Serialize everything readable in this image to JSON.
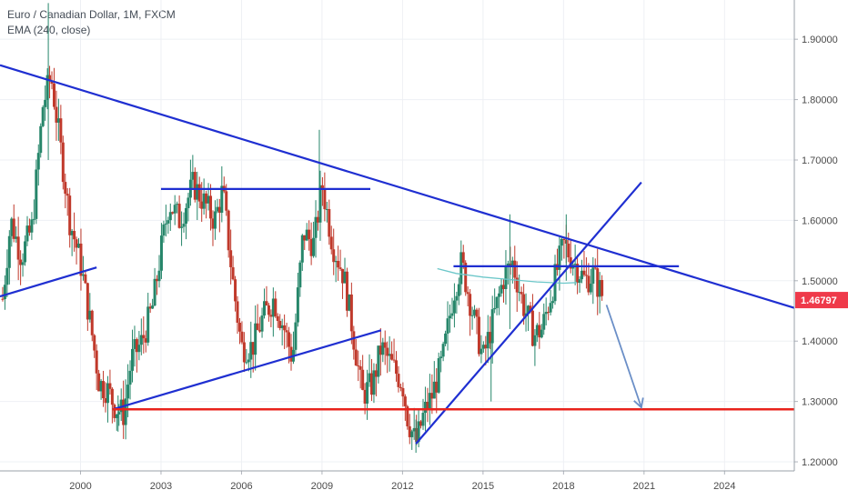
{
  "legend": {
    "title": "Euro / Canadian Dollar, 1M, FXCM",
    "indicator": "EMA (240, close)"
  },
  "colors": {
    "up_candle": "#26866a",
    "down_candle": "#c0392b",
    "trendline": "#1f2fd1",
    "support_line": "#e8231d",
    "ema": "#6cc7c9",
    "projection_arrow": "#6b8fc7",
    "price_badge": "#ef3a4a",
    "grid": "#eef0f4",
    "axis_text": "#4a4a4a"
  },
  "chart_data": {
    "type": "candlestick",
    "title": "Euro / Canadian Dollar, 1M, FXCM",
    "indicator": "EMA (240, close)",
    "x_range": [
      1997.0,
      2026.6
    ],
    "ylim": [
      1.185,
      1.965
    ],
    "y_ticks": [
      "1.20000",
      "1.30000",
      "1.40000",
      "1.50000",
      "1.60000",
      "1.70000",
      "1.80000",
      "1.90000"
    ],
    "x_ticks": [
      "2000",
      "2003",
      "2006",
      "2009",
      "2012",
      "2015",
      "2018",
      "2021",
      "2024"
    ],
    "last_price": "1.46797",
    "price_path": [
      [
        1997.1,
        1.47
      ],
      [
        1997.4,
        1.6
      ],
      [
        1997.8,
        1.54
      ],
      [
        1998.2,
        1.59
      ],
      [
        1998.6,
        1.79
      ],
      [
        1998.9,
        1.84
      ],
      [
        1999.2,
        1.74
      ],
      [
        1999.6,
        1.6
      ],
      [
        2000.0,
        1.53
      ],
      [
        2000.4,
        1.42
      ],
      [
        2000.7,
        1.33
      ],
      [
        2001.0,
        1.32
      ],
      [
        2001.3,
        1.29
      ],
      [
        2001.6,
        1.28
      ],
      [
        2001.9,
        1.37
      ],
      [
        2002.3,
        1.4
      ],
      [
        2002.7,
        1.46
      ],
      [
        2003.0,
        1.55
      ],
      [
        2003.3,
        1.63
      ],
      [
        2003.7,
        1.6
      ],
      [
        2004.2,
        1.66
      ],
      [
        2004.6,
        1.63
      ],
      [
        2005.0,
        1.6
      ],
      [
        2005.3,
        1.65
      ],
      [
        2005.7,
        1.49
      ],
      [
        2006.0,
        1.39
      ],
      [
        2006.4,
        1.39
      ],
      [
        2006.8,
        1.44
      ],
      [
        2007.2,
        1.47
      ],
      [
        2007.6,
        1.42
      ],
      [
        2007.9,
        1.37
      ],
      [
        2008.3,
        1.58
      ],
      [
        2008.7,
        1.56
      ],
      [
        2009.0,
        1.66
      ],
      [
        2009.4,
        1.56
      ],
      [
        2009.8,
        1.51
      ],
      [
        2010.1,
        1.43
      ],
      [
        2010.5,
        1.31
      ],
      [
        2010.9,
        1.33
      ],
      [
        2011.2,
        1.39
      ],
      [
        2011.6,
        1.36
      ],
      [
        2012.0,
        1.33
      ],
      [
        2012.2,
        1.27
      ],
      [
        2012.5,
        1.23
      ],
      [
        2012.8,
        1.28
      ],
      [
        2013.1,
        1.31
      ],
      [
        2013.5,
        1.37
      ],
      [
        2013.9,
        1.48
      ],
      [
        2014.2,
        1.53
      ],
      [
        2014.6,
        1.45
      ],
      [
        2015.0,
        1.37
      ],
      [
        2015.4,
        1.44
      ],
      [
        2015.8,
        1.51
      ],
      [
        2016.1,
        1.53
      ],
      [
        2016.5,
        1.46
      ],
      [
        2016.9,
        1.41
      ],
      [
        2017.2,
        1.42
      ],
      [
        2017.6,
        1.49
      ],
      [
        2018.0,
        1.56
      ],
      [
        2018.4,
        1.53
      ],
      [
        2018.8,
        1.5
      ],
      [
        2019.1,
        1.51
      ],
      [
        2019.5,
        1.47
      ]
    ],
    "wicks": [
      {
        "x": 1998.8,
        "low": 1.7,
        "high": 1.96
      },
      {
        "x": 2008.9,
        "low": 1.62,
        "high": 1.75
      },
      {
        "x": 2016.0,
        "low": 1.42,
        "high": 1.61
      },
      {
        "x": 2018.1,
        "low": 1.5,
        "high": 1.61
      },
      {
        "x": 2012.5,
        "low": 1.215,
        "high": 1.27
      },
      {
        "x": 2001.4,
        "low": 1.25,
        "high": 1.31
      },
      {
        "x": 2015.3,
        "low": 1.3,
        "high": 1.4
      }
    ],
    "ema_path": [
      [
        2013.3,
        1.52
      ],
      [
        2014.0,
        1.512
      ],
      [
        2015.0,
        1.506
      ],
      [
        2016.0,
        1.502
      ],
      [
        2017.0,
        1.498
      ],
      [
        2018.0,
        1.496
      ],
      [
        2018.5,
        1.497
      ]
    ],
    "drawings": {
      "trendlines": [
        {
          "x1": 1997.0,
          "y1": 1.857,
          "x2": 2026.6,
          "y2": 1.455
        },
        {
          "x1": 2003.0,
          "y1": 1.652,
          "x2": 2010.8,
          "y2": 1.652
        },
        {
          "x1": 1997.0,
          "y1": 1.474,
          "x2": 2000.6,
          "y2": 1.522
        },
        {
          "x1": 2001.2,
          "y1": 1.287,
          "x2": 2011.2,
          "y2": 1.418
        },
        {
          "x1": 2013.9,
          "y1": 1.524,
          "x2": 2022.3,
          "y2": 1.524
        },
        {
          "x1": 2012.5,
          "y1": 1.23,
          "x2": 2020.9,
          "y2": 1.663
        }
      ],
      "support_line": {
        "x1": 2001.2,
        "y1": 1.287,
        "x2": 2026.6,
        "y2": 1.287
      },
      "projection_arrow": {
        "x1": 2019.6,
        "y1": 1.46,
        "x2": 2020.9,
        "y2": 1.29
      }
    }
  }
}
